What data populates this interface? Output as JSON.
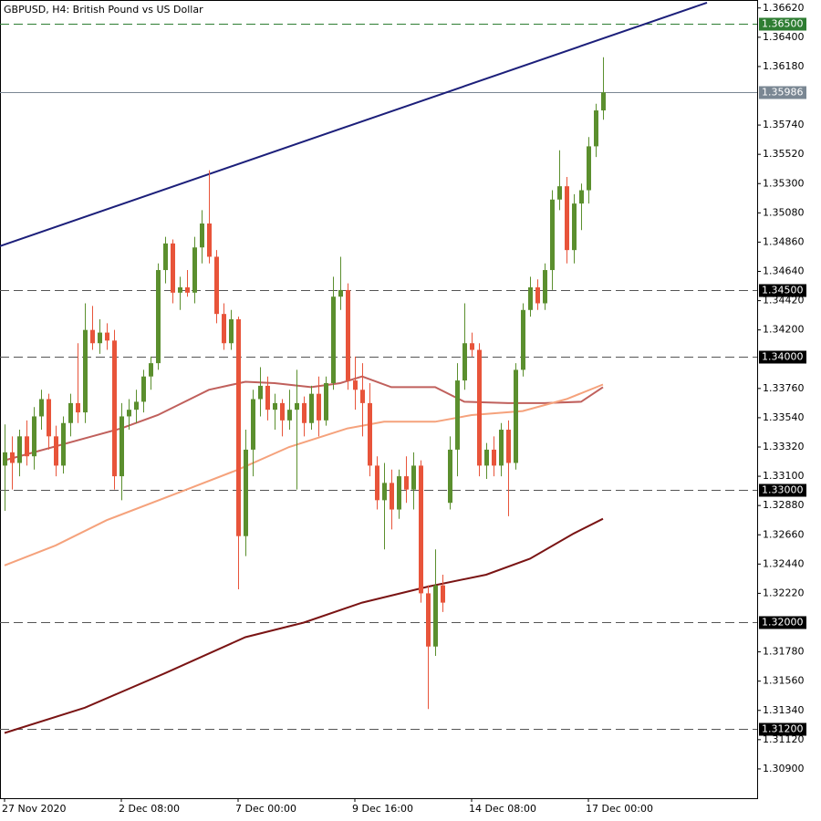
{
  "chart_data": {
    "type": "candlestick",
    "title": "GBPUSD, H4:  British Pound vs US Dollar",
    "categories": [
      "27 Nov 2020",
      null,
      null,
      null,
      null,
      null,
      null,
      null,
      null,
      null,
      null,
      null,
      null,
      null,
      null,
      null,
      "2 Dec 08:00",
      null,
      null,
      null,
      null,
      null,
      null,
      null,
      null,
      null,
      null,
      null,
      null,
      null,
      null,
      null,
      "7 Dec 00:00",
      null,
      null,
      null,
      null,
      null,
      null,
      null,
      null,
      null,
      null,
      null,
      null,
      null,
      null,
      null,
      "9 Dec 16:00",
      null,
      null,
      null,
      null,
      null,
      null,
      null,
      null,
      null,
      null,
      null,
      null,
      null,
      null,
      null,
      "14 Dec 08:00",
      null,
      null,
      null,
      null,
      null,
      null,
      null,
      null,
      null,
      null,
      null,
      null,
      null,
      null,
      null,
      "17 Dec 00:00",
      null,
      null
    ],
    "open": [
      1.3318,
      1.3328,
      1.332,
      1.334,
      1.3325,
      1.3355,
      1.3368,
      1.334,
      1.3318,
      1.335,
      1.3365,
      1.3358,
      1.342,
      1.341,
      1.3418,
      1.3412,
      1.331,
      1.3355,
      1.336,
      1.3366,
      1.3385,
      1.3395,
      1.3465,
      1.3485,
      1.3448,
      1.3452,
      1.3448,
      1.3482,
      1.35,
      1.3475,
      1.3432,
      1.341,
      1.3428,
      1.3265,
      1.333,
      1.3368,
      1.3378,
      1.336,
      1.3365,
      1.3352,
      1.336,
      1.3365,
      1.335,
      1.3372,
      1.3352,
      1.338,
      1.3445,
      1.345,
      1.3382,
      1.3375,
      1.3365,
      1.3318,
      1.3292,
      1.3305,
      1.3285,
      1.331,
      1.33,
      1.3318,
      1.3222,
      1.3182,
      1.3228,
      1.329,
      1.333,
      1.3382,
      1.341,
      1.3405,
      1.3318,
      1.333,
      1.3318,
      1.3345,
      1.332,
      1.339,
      1.3435,
      1.3452,
      1.344,
      1.3465,
      1.3518,
      1.3528,
      1.348,
      1.3515,
      1.3525,
      1.3558,
      1.3585
    ],
    "high": [
      1.3349,
      1.334,
      1.3345,
      1.3352,
      1.3362,
      1.3375,
      1.3372,
      1.3348,
      1.3355,
      1.3372,
      1.341,
      1.344,
      1.3438,
      1.3428,
      1.3425,
      1.342,
      1.3365,
      1.3368,
      1.3375,
      1.339,
      1.34,
      1.347,
      1.349,
      1.3488,
      1.346,
      1.3465,
      1.349,
      1.351,
      1.354,
      1.348,
      1.344,
      1.3435,
      1.343,
      1.3345,
      1.3375,
      1.3392,
      1.3385,
      1.3372,
      1.3368,
      1.3375,
      1.339,
      1.337,
      1.3378,
      1.3385,
      1.3385,
      1.346,
      1.3475,
      1.3455,
      1.34,
      1.3395,
      1.338,
      1.3325,
      1.332,
      1.3315,
      1.3315,
      1.3325,
      1.3328,
      1.3322,
      1.3228,
      1.3255,
      1.3236,
      1.334,
      1.3395,
      1.344,
      1.3418,
      1.341,
      1.3335,
      1.334,
      1.335,
      1.3352,
      1.3395,
      1.344,
      1.346,
      1.3458,
      1.347,
      1.3525,
      1.3555,
      1.3535,
      1.3522,
      1.353,
      1.3565,
      1.359,
      1.3625
    ],
    "low": [
      1.3284,
      1.33,
      1.331,
      1.3318,
      1.3315,
      1.3345,
      1.333,
      1.331,
      1.3312,
      1.334,
      1.335,
      1.335,
      1.3405,
      1.3402,
      1.3405,
      1.33,
      1.3292,
      1.3345,
      1.335,
      1.3358,
      1.3375,
      1.339,
      1.3455,
      1.344,
      1.3435,
      1.3445,
      1.344,
      1.347,
      1.347,
      1.3425,
      1.3405,
      1.3405,
      1.3225,
      1.325,
      1.331,
      1.3355,
      1.3352,
      1.3345,
      1.334,
      1.3345,
      1.33,
      1.334,
      1.3345,
      1.334,
      1.3348,
      1.3375,
      1.3435,
      1.3375,
      1.336,
      1.334,
      1.331,
      1.3285,
      1.3255,
      1.327,
      1.3278,
      1.329,
      1.3285,
      1.3215,
      1.3135,
      1.3175,
      1.3208,
      1.3285,
      1.331,
      1.3375,
      1.34,
      1.331,
      1.3308,
      1.331,
      1.331,
      1.328,
      1.3315,
      1.3385,
      1.343,
      1.3435,
      1.3435,
      1.345,
      1.351,
      1.347,
      1.347,
      1.3495,
      1.3515,
      1.355,
      1.3578
    ],
    "close": [
      1.3328,
      1.332,
      1.334,
      1.3325,
      1.3355,
      1.3368,
      1.334,
      1.3318,
      1.335,
      1.3365,
      1.3358,
      1.342,
      1.341,
      1.3418,
      1.3412,
      1.331,
      1.3355,
      1.336,
      1.3366,
      1.3385,
      1.3395,
      1.3465,
      1.3485,
      1.3448,
      1.3452,
      1.3448,
      1.3482,
      1.35,
      1.3475,
      1.3432,
      1.341,
      1.3428,
      1.3265,
      1.333,
      1.3368,
      1.3378,
      1.336,
      1.3365,
      1.3352,
      1.336,
      1.3365,
      1.335,
      1.3372,
      1.3352,
      1.338,
      1.3445,
      1.345,
      1.3382,
      1.3375,
      1.3365,
      1.3318,
      1.3292,
      1.3305,
      1.3285,
      1.331,
      1.33,
      1.3318,
      1.3222,
      1.3182,
      1.3228,
      1.3215,
      1.333,
      1.3382,
      1.341,
      1.3405,
      1.3318,
      1.333,
      1.3318,
      1.3345,
      1.332,
      1.339,
      1.3435,
      1.3452,
      1.344,
      1.3465,
      1.3518,
      1.3528,
      1.348,
      1.3515,
      1.3525,
      1.3558,
      1.3585,
      1.35986
    ],
    "up_color": "#5b8f2e",
    "down_color": "#e8543a",
    "overlays": [
      {
        "color": "#c0605c",
        "x": [
          0,
          12,
          16,
          21,
          28,
          33,
          37,
          42,
          46,
          49,
          53,
          59,
          63,
          69,
          74,
          79,
          82
        ],
        "values": [
          1.3322,
          1.334,
          1.3346,
          1.3356,
          1.3375,
          1.3381,
          1.338,
          1.3377,
          1.338,
          1.3385,
          1.3377,
          1.3377,
          1.3366,
          1.3365,
          1.3365,
          1.3366,
          1.3377
        ]
      },
      {
        "color": "#f5a27c",
        "x": [
          0,
          7,
          14,
          24,
          32,
          39,
          47,
          52,
          59,
          64,
          71,
          77,
          82
        ],
        "values": [
          1.3243,
          1.3258,
          1.3277,
          1.3298,
          1.3315,
          1.3332,
          1.3346,
          1.3351,
          1.3351,
          1.3356,
          1.3359,
          1.3368,
          1.3379
        ]
      },
      {
        "color": "#7a1414",
        "x": [
          0,
          11,
          22,
          33,
          41,
          49,
          58,
          66,
          72,
          78,
          82
        ],
        "values": [
          1.3117,
          1.3136,
          1.3162,
          1.3189,
          1.32,
          1.3215,
          1.3227,
          1.3236,
          1.3248,
          1.3267,
          1.3278
        ]
      }
    ],
    "trendline": {
      "color": "#1c1f7a",
      "x": [
        -0.625,
        96.25
      ],
      "values": [
        1.3483,
        1.3666
      ]
    },
    "levels": [
      {
        "value": 1.365,
        "label": "1.36500",
        "color": "#2e7d32"
      },
      {
        "value": 1.345,
        "label": "1.34500",
        "color": "#000000"
      },
      {
        "value": 1.34,
        "label": "1.34000",
        "color": "#000000"
      },
      {
        "value": 1.33,
        "label": "1.33000",
        "color": "#000000"
      },
      {
        "value": 1.32,
        "label": "1.32000",
        "color": "#000000"
      },
      {
        "value": 1.312,
        "label": "1.31200",
        "color": "#000000"
      }
    ],
    "last_price": 1.35986,
    "last_color": "#7a8793",
    "ylim": [
      1.3068,
      1.3668
    ],
    "yticks": [
      {
        "value": 1.3662,
        "label": "1.36620"
      },
      {
        "value": 1.364,
        "label": "1.36400"
      },
      {
        "value": 1.3618,
        "label": "1.36180"
      },
      {
        "value": 1.3574,
        "label": "1.35740"
      },
      {
        "value": 1.3552,
        "label": "1.35520"
      },
      {
        "value": 1.353,
        "label": "1.35300"
      },
      {
        "value": 1.3508,
        "label": "1.35080"
      },
      {
        "value": 1.3486,
        "label": "1.34860"
      },
      {
        "value": 1.3464,
        "label": "1.34640"
      },
      {
        "value": 1.3442,
        "label": "1.34420"
      },
      {
        "value": 1.342,
        "label": "1.34200"
      },
      {
        "value": 1.3376,
        "label": "1.33760"
      },
      {
        "value": 1.3354,
        "label": "1.33540"
      },
      {
        "value": 1.3332,
        "label": "1.33320"
      },
      {
        "value": 1.331,
        "label": "1.33100"
      },
      {
        "value": 1.3288,
        "label": "1.32880"
      },
      {
        "value": 1.3266,
        "label": "1.32660"
      },
      {
        "value": 1.3244,
        "label": "1.32440"
      },
      {
        "value": 1.3222,
        "label": "1.32220"
      },
      {
        "value": 1.3178,
        "label": "1.31780"
      },
      {
        "value": 1.3156,
        "label": "1.31560"
      },
      {
        "value": 1.3134,
        "label": "1.31340"
      },
      {
        "value": 1.3112,
        "label": "1.31120"
      },
      {
        "value": 1.309,
        "label": "1.30900"
      }
    ]
  }
}
